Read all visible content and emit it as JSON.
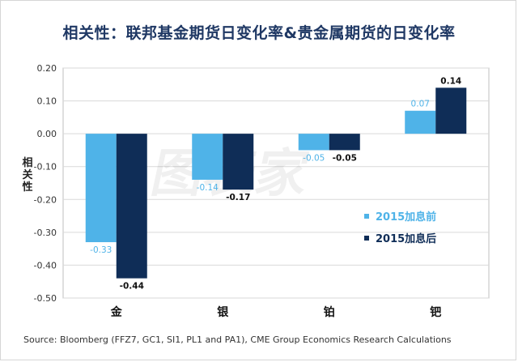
{
  "title": "相关性：联邦基金期货日变化率&贵金属期货的日变化率",
  "source": "Source: Bloomberg (FFZ7, GC1, SI1, PL1 and PA1), CME Group Economics Research Calculations",
  "watermark": "图表家",
  "colors": {
    "series_light": "#4fb3e8",
    "series_dark": "#0f2d57",
    "title": "#1f3864",
    "grid": "#d9d9d9"
  },
  "chart_data": {
    "type": "bar",
    "title": "相关性：联邦基金期货日变化率&贵金属期货的日变化率",
    "categories": [
      "金",
      "银",
      "铂",
      "钯"
    ],
    "series": [
      {
        "name": "2015加息前",
        "values": [
          -0.33,
          -0.14,
          -0.05,
          0.07
        ],
        "labels": [
          "-0.33",
          "-0.14",
          "-0.05",
          "0.07"
        ]
      },
      {
        "name": "2015加息后",
        "values": [
          -0.44,
          -0.17,
          -0.05,
          0.14
        ],
        "labels": [
          "-0.44",
          "-0.17",
          "-0.05",
          "0.14"
        ]
      }
    ],
    "xlabel": "",
    "ylabel": "相关性",
    "ylim": [
      -0.5,
      0.2
    ],
    "yticks": [
      0.2,
      0.1,
      0.0,
      -0.1,
      -0.2,
      -0.3,
      -0.4,
      -0.5
    ],
    "ytick_labels": [
      "0.20",
      "0.10",
      "0.00",
      "-0.10",
      "-0.20",
      "-0.30",
      "-0.40",
      "-0.50"
    ],
    "grid": true,
    "legend": "right-lower"
  }
}
